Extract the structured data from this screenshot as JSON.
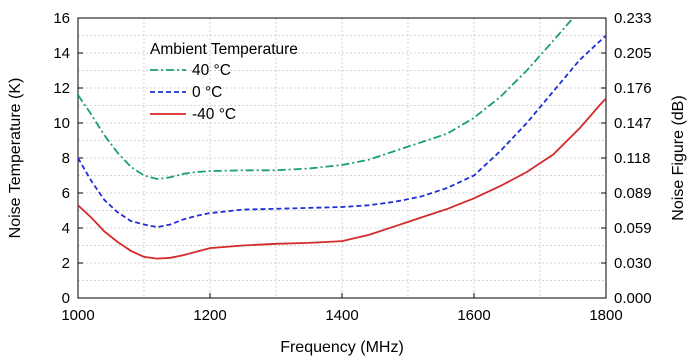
{
  "chart_data": {
    "type": "line",
    "xlabel": "Frequency (MHz)",
    "ylabel": "Noise Temperature (K)",
    "y2label": "Noise Figure (dB)",
    "xlim": [
      1000,
      1800
    ],
    "ylim": [
      0,
      16
    ],
    "grid": true,
    "x_ticks": [
      "1000",
      "1200",
      "1400",
      "1600",
      "1800"
    ],
    "y_ticks": [
      "0",
      "2",
      "4",
      "6",
      "8",
      "10",
      "12",
      "14",
      "16"
    ],
    "y2_ticks": [
      "0.000",
      "0.030",
      "0.059",
      "0.089",
      "0.118",
      "0.147",
      "0.176",
      "0.205",
      "0.233"
    ],
    "legend": {
      "title": "Ambient Temperature",
      "position": "top-left"
    },
    "series": [
      {
        "name": "40 °C",
        "color": "#1a9e77",
        "dash": "dash-dot",
        "x": [
          1000,
          1020,
          1040,
          1060,
          1080,
          1100,
          1120,
          1140,
          1160,
          1180,
          1200,
          1250,
          1300,
          1350,
          1400,
          1440,
          1480,
          1520,
          1560,
          1600,
          1640,
          1680,
          1720,
          1750
        ],
        "y": [
          11.6,
          10.5,
          9.3,
          8.3,
          7.5,
          7.0,
          6.8,
          6.9,
          7.1,
          7.2,
          7.25,
          7.3,
          7.3,
          7.4,
          7.6,
          7.9,
          8.4,
          8.9,
          9.4,
          10.3,
          11.5,
          13.0,
          14.7,
          16.0
        ]
      },
      {
        "name": "0 °C",
        "color": "#1f2fd6",
        "dash": "dashed",
        "x": [
          1000,
          1020,
          1040,
          1060,
          1080,
          1100,
          1120,
          1140,
          1160,
          1180,
          1200,
          1250,
          1300,
          1350,
          1400,
          1440,
          1480,
          1520,
          1560,
          1600,
          1640,
          1680,
          1720,
          1760,
          1800
        ],
        "y": [
          8.0,
          6.7,
          5.6,
          4.9,
          4.4,
          4.2,
          4.05,
          4.2,
          4.5,
          4.7,
          4.85,
          5.05,
          5.1,
          5.15,
          5.2,
          5.3,
          5.5,
          5.8,
          6.3,
          7.0,
          8.4,
          10.0,
          11.8,
          13.6,
          15.0
        ]
      },
      {
        "name": "-40 °C",
        "color": "#d42a2a",
        "dash": "solid",
        "x": [
          1000,
          1020,
          1040,
          1060,
          1080,
          1100,
          1120,
          1140,
          1160,
          1180,
          1200,
          1250,
          1300,
          1350,
          1400,
          1440,
          1480,
          1520,
          1560,
          1600,
          1640,
          1680,
          1720,
          1760,
          1790,
          1800
        ],
        "y": [
          5.3,
          4.6,
          3.8,
          3.2,
          2.7,
          2.35,
          2.25,
          2.3,
          2.45,
          2.65,
          2.85,
          3.0,
          3.1,
          3.15,
          3.25,
          3.6,
          4.1,
          4.6,
          5.1,
          5.7,
          6.4,
          7.2,
          8.2,
          9.7,
          11.0,
          11.4
        ]
      }
    ]
  }
}
